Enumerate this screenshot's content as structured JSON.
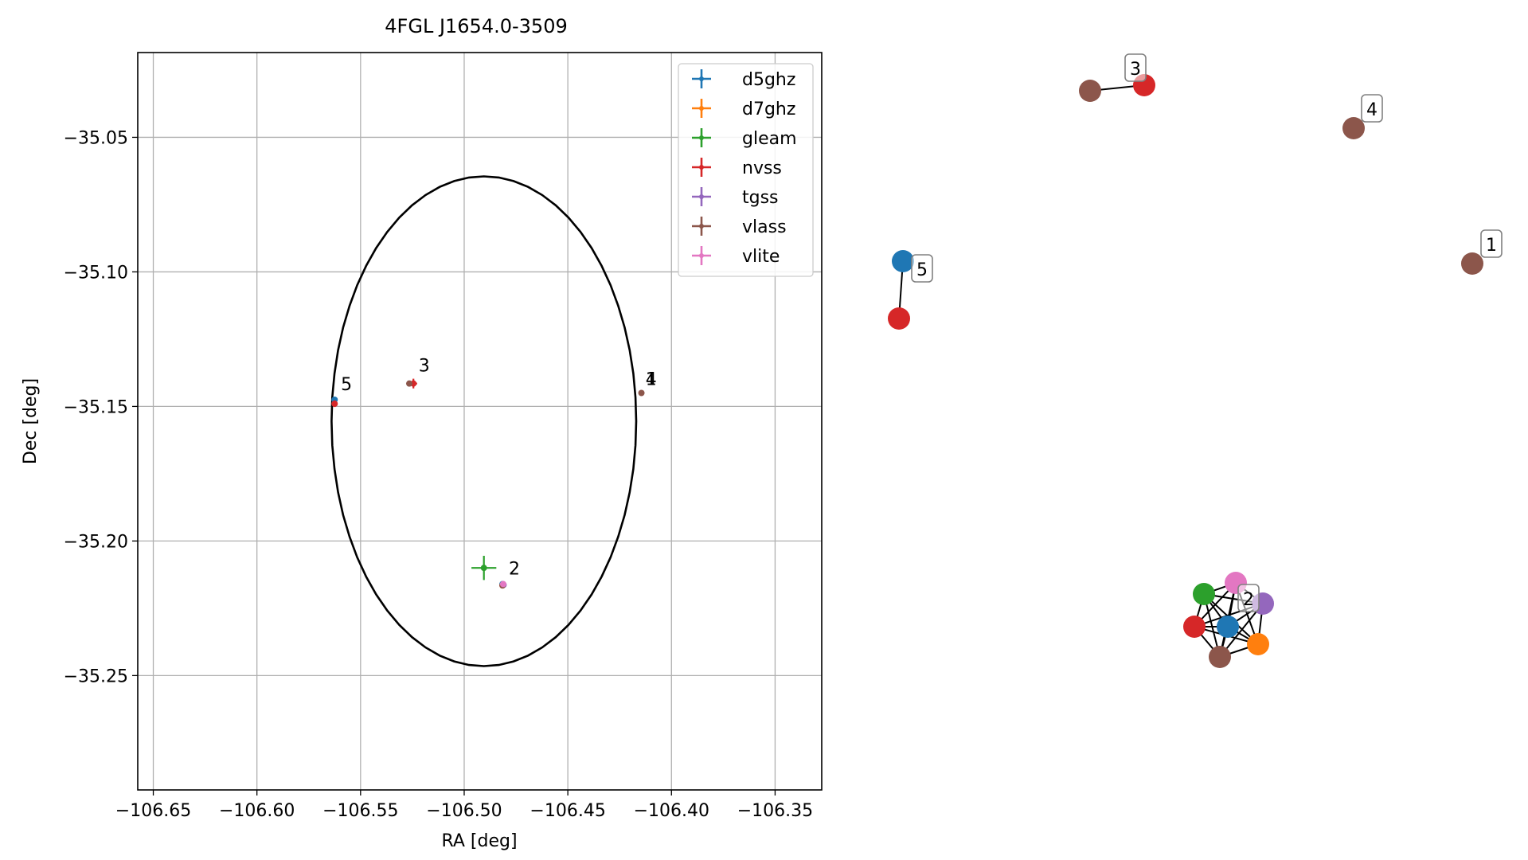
{
  "chart_data": [
    {
      "type": "scatter",
      "title": "4FGL J1654.0-3509",
      "xlabel": "RA [deg]",
      "ylabel": "Dec [deg]",
      "xlim": [
        -106.6575,
        -106.3275
      ],
      "ylim": [
        -35.2925,
        -35.0185
      ],
      "xticks": [
        -106.65,
        -106.6,
        -106.55,
        -106.5,
        -106.45,
        -106.4,
        -106.35
      ],
      "xtick_labels": [
        "−106.65",
        "−106.60",
        "−106.55",
        "−106.50",
        "−106.45",
        "−106.40",
        "−106.35"
      ],
      "yticks": [
        -35.05,
        -35.1,
        -35.15,
        -35.2,
        -35.25
      ],
      "ytick_labels": [
        "−35.05",
        "−35.10",
        "−35.15",
        "−35.20",
        "−35.25"
      ],
      "grid": true,
      "legend_position": "upper right",
      "ellipse": {
        "center": [
          -106.4905,
          -35.1555
        ],
        "semi_axis_ra": 0.0735,
        "semi_axis_dec": 0.091
      },
      "series": [
        {
          "name": "d5ghz",
          "color": "#1f77b4",
          "points": [
            {
              "x": -106.5625,
              "y": -35.1475,
              "xerr": 0.0005,
              "yerr": 0.0005
            },
            {
              "x": -106.4815,
              "y": -35.216,
              "xerr": 0.0006,
              "yerr": 0.0006
            }
          ]
        },
        {
          "name": "d7ghz",
          "color": "#ff7f0e",
          "points": [
            {
              "x": -106.4815,
              "y": -35.2165,
              "xerr": 0.0006,
              "yerr": 0.0006
            }
          ]
        },
        {
          "name": "gleam",
          "color": "#2ca02c",
          "points": [
            {
              "x": -106.4905,
              "y": -35.21,
              "xerr": 0.006,
              "yerr": 0.0045
            }
          ]
        },
        {
          "name": "nvss",
          "color": "#d62728",
          "points": [
            {
              "x": -106.5625,
              "y": -35.149,
              "xerr": 0.0008,
              "yerr": 0.0012
            },
            {
              "x": -106.5245,
              "y": -35.1415,
              "xerr": 0.0018,
              "yerr": 0.0018
            },
            {
              "x": -106.4815,
              "y": -35.2165,
              "xerr": 0.0006,
              "yerr": 0.0006
            }
          ]
        },
        {
          "name": "tgss",
          "color": "#9467bd",
          "points": [
            {
              "x": -106.481,
              "y": -35.2163,
              "xerr": 0.0006,
              "yerr": 0.0006
            }
          ]
        },
        {
          "name": "vlass",
          "color": "#8c564b",
          "points": [
            {
              "x": -106.5265,
              "y": -35.1415,
              "xerr": 0.0004,
              "yerr": 0.0004
            },
            {
              "x": -106.4145,
              "y": -35.145,
              "xerr": 0.0004,
              "yerr": 0.0004
            },
            {
              "x": -106.4815,
              "y": -35.2165,
              "xerr": 0.0005,
              "yerr": 0.0005
            }
          ]
        },
        {
          "name": "vlite",
          "color": "#e377c2",
          "points": [
            {
              "x": -106.4812,
              "y": -35.216,
              "xerr": 0.001,
              "yerr": 0.001
            }
          ]
        }
      ],
      "annotations": [
        {
          "text": "5",
          "x": -106.5595,
          "y": -35.144
        },
        {
          "text": "3",
          "x": -106.522,
          "y": -35.137
        },
        {
          "text": "1",
          "x": -106.4125,
          "y": -35.142
        },
        {
          "text": "4",
          "x": -106.4125,
          "y": -35.142
        },
        {
          "text": "2",
          "x": -106.4785,
          "y": -35.2125
        }
      ]
    },
    {
      "type": "network",
      "node_colors": [
        "#1f77b4",
        "#ff7f0e",
        "#2ca02c",
        "#d62728",
        "#9467bd",
        "#8c564b",
        "#e377c2"
      ],
      "clusters": [
        {
          "label": "1",
          "nodes": [
            {
              "series": "vlass"
            }
          ]
        },
        {
          "label": "2",
          "nodes": [
            {
              "series": "d5ghz"
            },
            {
              "series": "d7ghz"
            },
            {
              "series": "gleam"
            },
            {
              "series": "nvss"
            },
            {
              "series": "tgss"
            },
            {
              "series": "vlass"
            },
            {
              "series": "vlite"
            }
          ]
        },
        {
          "label": "3",
          "nodes": [
            {
              "series": "vlass"
            },
            {
              "series": "nvss"
            }
          ]
        },
        {
          "label": "4",
          "nodes": [
            {
              "series": "vlass"
            }
          ]
        },
        {
          "label": "5",
          "nodes": [
            {
              "series": "d5ghz"
            },
            {
              "series": "nvss"
            }
          ]
        }
      ]
    }
  ]
}
